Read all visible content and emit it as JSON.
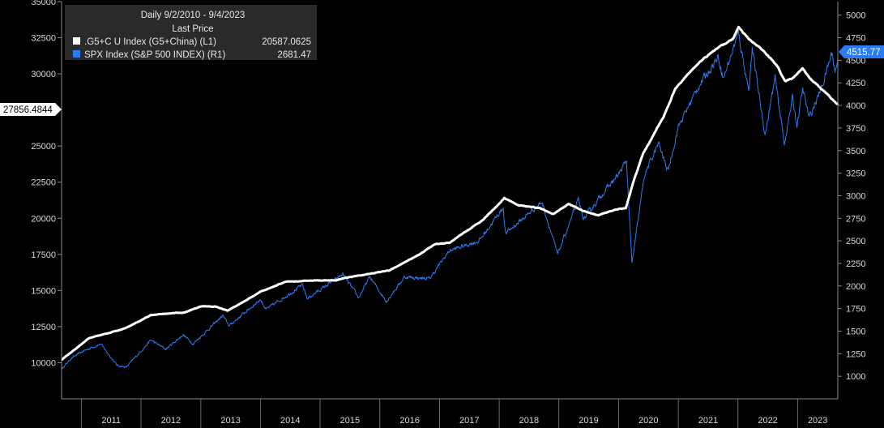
{
  "chart_data": {
    "type": "line",
    "title": "Daily 9/2/2010 - 9/4/2023",
    "subtitle": "Last Price",
    "x_range": [
      "2010-09-02",
      "2023-09-04"
    ],
    "x_tick_labels": [
      "2011",
      "2012",
      "2013",
      "2014",
      "2015",
      "2016",
      "2017",
      "2018",
      "2019",
      "2020",
      "2021",
      "2022",
      "2023"
    ],
    "left_axis": {
      "ylim": [
        7500,
        35000
      ],
      "ticks": [
        10000,
        12500,
        15000,
        17500,
        20000,
        22500,
        25000,
        27500,
        30000,
        32500,
        35000
      ],
      "tick_labels": [
        "10000",
        "12500",
        "15000",
        "17500",
        "20000",
        "22500",
        "25000",
        "27500",
        "30000",
        "32500",
        "35000"
      ]
    },
    "right_axis": {
      "ylim": [
        750,
        5150
      ],
      "ticks": [
        1000,
        1250,
        1500,
        1750,
        2000,
        2250,
        2500,
        2750,
        3000,
        3250,
        3500,
        3750,
        4000,
        4250,
        4500,
        4750,
        5000
      ],
      "tick_labels": [
        "1000",
        "1250",
        "1500",
        "1750",
        "2000",
        "2250",
        "2500",
        "2750",
        "3000",
        "3250",
        "3500",
        "3750",
        "4000",
        "4250",
        "4500",
        "4750",
        "5000"
      ]
    },
    "legend": {
      "position": "top-left",
      "entries": [
        {
          "label": ".G5+C U Index (G5+China)  (L1)",
          "value": "20587.0625"
        },
        {
          "label": "SPX Index (S&P 500 INDEX)  (R1)",
          "value": "2681.47"
        }
      ]
    },
    "last_value_tags": {
      "left": "27856.4844",
      "right": "4515.77"
    },
    "series": [
      {
        "name": ".G5+C U Index (G5+China)",
        "axis": "left",
        "color": "#ffffff",
        "points": [
          [
            "2010-09-02",
            10200
          ],
          [
            "2010-12-01",
            11000
          ],
          [
            "2011-02-15",
            11700
          ],
          [
            "2011-07-01",
            12100
          ],
          [
            "2011-10-01",
            12400
          ],
          [
            "2012-03-01",
            13300
          ],
          [
            "2012-06-01",
            13400
          ],
          [
            "2012-10-01",
            13500
          ],
          [
            "2013-01-01",
            13900
          ],
          [
            "2013-04-01",
            13900
          ],
          [
            "2013-06-15",
            13600
          ],
          [
            "2013-10-01",
            14300
          ],
          [
            "2014-01-01",
            14900
          ],
          [
            "2014-06-01",
            15600
          ],
          [
            "2014-12-01",
            15700
          ],
          [
            "2015-04-01",
            15700
          ],
          [
            "2015-08-01",
            16000
          ],
          [
            "2015-12-01",
            16200
          ],
          [
            "2016-03-01",
            16400
          ],
          [
            "2016-09-01",
            17500
          ],
          [
            "2016-12-01",
            18200
          ],
          [
            "2017-03-01",
            18300
          ],
          [
            "2017-09-01",
            19700
          ],
          [
            "2017-12-15",
            20800
          ],
          [
            "2018-02-01",
            21400
          ],
          [
            "2018-05-01",
            20900
          ],
          [
            "2018-09-01",
            20700
          ],
          [
            "2018-12-01",
            20300
          ],
          [
            "2019-03-01",
            21000
          ],
          [
            "2019-06-01",
            20500
          ],
          [
            "2019-09-01",
            20200
          ],
          [
            "2019-12-15",
            20600
          ],
          [
            "2020-02-15",
            20700
          ],
          [
            "2020-04-01",
            22500
          ],
          [
            "2020-06-01",
            24500
          ],
          [
            "2020-10-01",
            27000
          ],
          [
            "2020-12-15",
            29000
          ],
          [
            "2021-03-01",
            30000
          ],
          [
            "2021-06-01",
            31000
          ],
          [
            "2021-09-01",
            31800
          ],
          [
            "2021-12-01",
            32400
          ],
          [
            "2022-01-05",
            33200
          ],
          [
            "2022-03-01",
            32500
          ],
          [
            "2022-06-15",
            31500
          ],
          [
            "2022-09-01",
            30500
          ],
          [
            "2022-10-15",
            29500
          ],
          [
            "2022-12-01",
            29700
          ],
          [
            "2023-02-01",
            30400
          ],
          [
            "2023-03-15",
            29700
          ],
          [
            "2023-05-01",
            29200
          ],
          [
            "2023-07-01",
            28600
          ],
          [
            "2023-09-04",
            27856
          ]
        ]
      },
      {
        "name": "SPX Index (S&P 500 INDEX)",
        "axis": "right",
        "color": "#2a7bf6",
        "points": [
          [
            "2010-09-02",
            1080
          ],
          [
            "2010-11-01",
            1200
          ],
          [
            "2011-01-15",
            1280
          ],
          [
            "2011-04-29",
            1360
          ],
          [
            "2011-08-08",
            1120
          ],
          [
            "2011-10-03",
            1100
          ],
          [
            "2012-03-01",
            1400
          ],
          [
            "2012-06-01",
            1300
          ],
          [
            "2012-09-15",
            1460
          ],
          [
            "2012-11-15",
            1360
          ],
          [
            "2013-05-15",
            1670
          ],
          [
            "2013-06-24",
            1560
          ],
          [
            "2013-12-31",
            1850
          ],
          [
            "2014-02-05",
            1740
          ],
          [
            "2014-09-15",
            2010
          ],
          [
            "2014-10-15",
            1860
          ],
          [
            "2015-05-20",
            2130
          ],
          [
            "2015-08-25",
            1870
          ],
          [
            "2015-11-01",
            2100
          ],
          [
            "2016-02-11",
            1830
          ],
          [
            "2016-06-01",
            2100
          ],
          [
            "2016-11-01",
            2080
          ],
          [
            "2017-03-01",
            2390
          ],
          [
            "2017-09-01",
            2500
          ],
          [
            "2018-01-26",
            2870
          ],
          [
            "2018-02-08",
            2580
          ],
          [
            "2018-09-20",
            2930
          ],
          [
            "2018-12-24",
            2350
          ],
          [
            "2019-04-30",
            2950
          ],
          [
            "2019-06-03",
            2740
          ],
          [
            "2019-09-15",
            3000
          ],
          [
            "2019-12-31",
            3230
          ],
          [
            "2020-02-19",
            3390
          ],
          [
            "2020-03-23",
            2240
          ],
          [
            "2020-06-08",
            3230
          ],
          [
            "2020-09-02",
            3580
          ],
          [
            "2020-10-30",
            3270
          ],
          [
            "2020-12-31",
            3760
          ],
          [
            "2021-05-01",
            4200
          ],
          [
            "2021-09-02",
            4540
          ],
          [
            "2021-10-04",
            4300
          ],
          [
            "2022-01-03",
            4800
          ],
          [
            "2022-03-08",
            4170
          ],
          [
            "2022-03-29",
            4630
          ],
          [
            "2022-06-16",
            3670
          ],
          [
            "2022-08-16",
            4300
          ],
          [
            "2022-10-12",
            3580
          ],
          [
            "2022-12-01",
            4080
          ],
          [
            "2022-12-28",
            3780
          ],
          [
            "2023-02-02",
            4180
          ],
          [
            "2023-03-13",
            3860
          ],
          [
            "2023-06-01",
            4220
          ],
          [
            "2023-07-31",
            4590
          ],
          [
            "2023-08-18",
            4370
          ],
          [
            "2023-09-04",
            4515
          ]
        ]
      }
    ]
  }
}
